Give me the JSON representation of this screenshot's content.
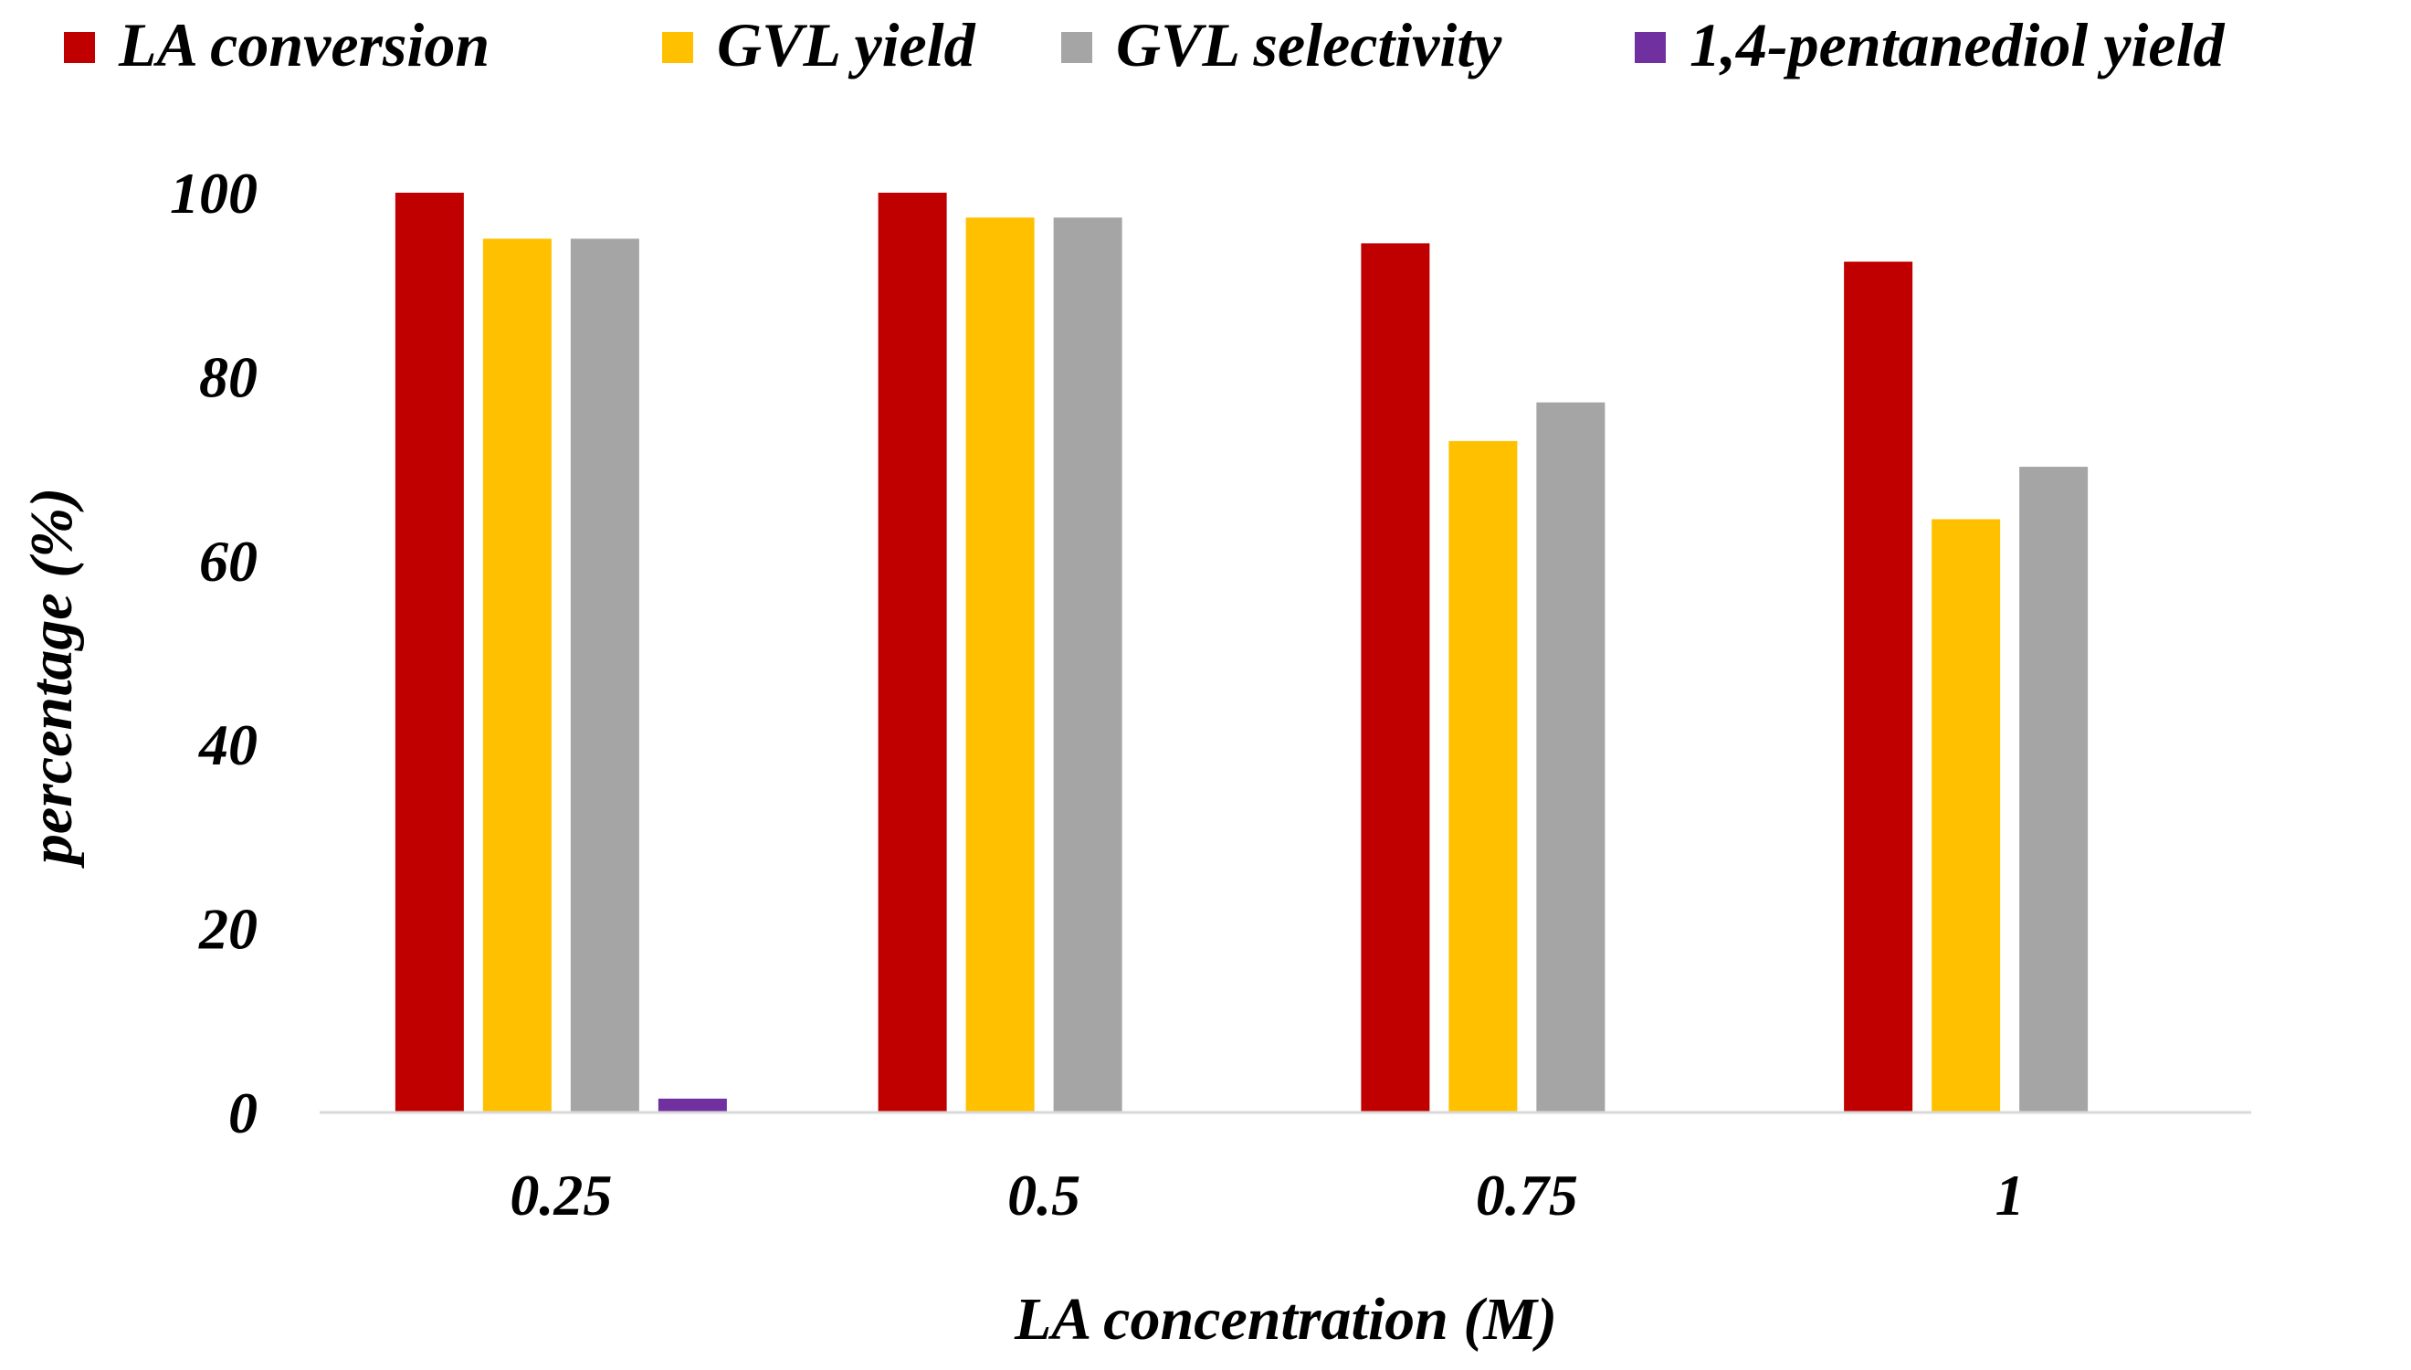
{
  "chart_data": {
    "type": "bar",
    "title": "",
    "xlabel": "LA concentration (M)",
    "ylabel": "percentage (%)",
    "categories": [
      "0.25",
      "0.5",
      "0.75",
      "1"
    ],
    "ylim": [
      0,
      100
    ],
    "yticks": [
      "0",
      "20",
      "40",
      "60",
      "80",
      "100"
    ],
    "grid": false,
    "legend_position": "top",
    "series": [
      {
        "name": "LA conversion",
        "color": "#C00000",
        "values": [
          100,
          100,
          94.5,
          92.5
        ]
      },
      {
        "name": "GVL yield",
        "color": "#FFC000",
        "values": [
          95,
          97.3,
          73,
          64.5
        ]
      },
      {
        "name": "GVL selectivity",
        "color": "#A5A5A5",
        "values": [
          95,
          97.3,
          77.2,
          70.2
        ]
      },
      {
        "name": "1,4-pentanediol yield",
        "color": "#7030A0",
        "values": [
          1.5,
          0,
          0,
          0
        ]
      }
    ]
  }
}
